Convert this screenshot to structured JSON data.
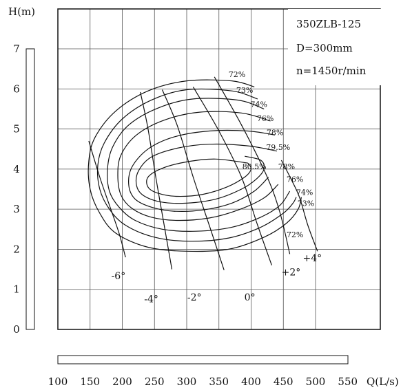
{
  "chart_data": {
    "type": "line",
    "title": "",
    "xlabel": "Q(L/s)",
    "ylabel": "H(m)",
    "xlim": [
      100,
      550
    ],
    "ylim": [
      0,
      7
    ],
    "x_ticks": [
      "100",
      "150",
      "200",
      "250",
      "300",
      "350",
      "400",
      "450",
      "500",
      "550"
    ],
    "y_ticks": [
      "0",
      "1",
      "2",
      "3",
      "4",
      "5",
      "6",
      "7"
    ],
    "grid": true,
    "info": [
      "350ZLB-125",
      "D=300mm",
      "n=1450r/min"
    ],
    "efficiency_contours": [
      {
        "name": "72%",
        "points": [
          [
            405,
            6.05
          ],
          [
            370,
            6.2
          ],
          [
            300,
            6.2
          ],
          [
            240,
            5.95
          ],
          [
            190,
            5.45
          ],
          [
            158,
            4.8
          ],
          [
            148,
            4.2
          ],
          [
            150,
            3.5
          ],
          [
            165,
            2.9
          ],
          [
            190,
            2.4
          ],
          [
            240,
            2.05
          ],
          [
            300,
            1.95
          ],
          [
            365,
            2.0
          ],
          [
            420,
            2.3
          ],
          [
            455,
            2.65
          ],
          [
            473,
            3.0
          ],
          [
            478,
            3.3
          ]
        ]
      },
      {
        "name": "73%",
        "points": [
          [
            410,
            5.75
          ],
          [
            370,
            5.95
          ],
          [
            300,
            5.98
          ],
          [
            245,
            5.72
          ],
          [
            200,
            5.25
          ],
          [
            172,
            4.65
          ],
          [
            162,
            4.1
          ],
          [
            165,
            3.5
          ],
          [
            180,
            3.0
          ],
          [
            205,
            2.6
          ],
          [
            250,
            2.3
          ],
          [
            305,
            2.2
          ],
          [
            365,
            2.28
          ],
          [
            415,
            2.55
          ],
          [
            450,
            2.9
          ],
          [
            465,
            3.15
          ],
          [
            470,
            3.3
          ]
        ]
      },
      {
        "name": "74%",
        "points": [
          [
            420,
            5.5
          ],
          [
            380,
            5.72
          ],
          [
            310,
            5.75
          ],
          [
            255,
            5.52
          ],
          [
            210,
            5.1
          ],
          [
            185,
            4.55
          ],
          [
            177,
            4.0
          ],
          [
            180,
            3.45
          ],
          [
            195,
            3.05
          ],
          [
            220,
            2.72
          ],
          [
            262,
            2.5
          ],
          [
            315,
            2.45
          ],
          [
            370,
            2.55
          ],
          [
            415,
            2.8
          ],
          [
            445,
            3.1
          ],
          [
            460,
            3.45
          ]
        ]
      },
      {
        "name": "76%",
        "points": [
          [
            430,
            5.2
          ],
          [
            385,
            5.4
          ],
          [
            320,
            5.42
          ],
          [
            265,
            5.22
          ],
          [
            222,
            4.85
          ],
          [
            198,
            4.35
          ],
          [
            193,
            3.85
          ],
          [
            198,
            3.35
          ],
          [
            215,
            3.02
          ],
          [
            245,
            2.8
          ],
          [
            285,
            2.72
          ],
          [
            335,
            2.78
          ],
          [
            380,
            2.98
          ],
          [
            420,
            3.28
          ],
          [
            442,
            3.62
          ]
        ]
      },
      {
        "name": "78%",
        "points": [
          [
            437,
            4.85
          ],
          [
            395,
            4.95
          ],
          [
            335,
            4.95
          ],
          [
            280,
            4.8
          ],
          [
            240,
            4.5
          ],
          [
            215,
            4.05
          ],
          [
            210,
            3.6
          ],
          [
            220,
            3.25
          ],
          [
            245,
            3.05
          ],
          [
            280,
            2.95
          ],
          [
            325,
            2.98
          ],
          [
            370,
            3.15
          ],
          [
            405,
            3.45
          ],
          [
            427,
            3.8
          ]
        ]
      },
      {
        "name": "79.5%",
        "points": [
          [
            440,
            4.45
          ],
          [
            395,
            4.58
          ],
          [
            335,
            4.62
          ],
          [
            285,
            4.52
          ],
          [
            245,
            4.3
          ],
          [
            225,
            3.95
          ],
          [
            222,
            3.6
          ],
          [
            232,
            3.35
          ],
          [
            260,
            3.18
          ],
          [
            300,
            3.15
          ],
          [
            345,
            3.25
          ],
          [
            385,
            3.5
          ],
          [
            408,
            3.75
          ],
          [
            420,
            4.0
          ],
          [
            415,
            4.22
          ],
          [
            390,
            4.32
          ]
        ]
      },
      {
        "name": "80.5%",
        "points": [
          [
            395,
            4.15
          ],
          [
            345,
            4.25
          ],
          [
            300,
            4.18
          ],
          [
            262,
            4.02
          ],
          [
            240,
            3.8
          ],
          [
            240,
            3.55
          ],
          [
            255,
            3.4
          ],
          [
            285,
            3.32
          ],
          [
            325,
            3.37
          ],
          [
            362,
            3.55
          ],
          [
            390,
            3.8
          ],
          [
            400,
            4.0
          ],
          [
            395,
            4.15
          ]
        ]
      }
    ],
    "angle_curves": [
      {
        "name": "-6°",
        "points": [
          [
            148,
            4.7
          ],
          [
            165,
            3.8
          ],
          [
            180,
            3.1
          ],
          [
            195,
            2.4
          ],
          [
            205,
            1.8
          ]
        ]
      },
      {
        "name": "-4°",
        "points": [
          [
            228,
            5.92
          ],
          [
            240,
            5.0
          ],
          [
            252,
            3.8
          ],
          [
            265,
            2.6
          ],
          [
            277,
            1.5
          ]
        ]
      },
      {
        "name": "-2°",
        "points": [
          [
            262,
            5.98
          ],
          [
            285,
            5.1
          ],
          [
            310,
            3.8
          ],
          [
            335,
            2.6
          ],
          [
            358,
            1.48
          ]
        ]
      },
      {
        "name": "0°",
        "points": [
          [
            310,
            6.05
          ],
          [
            350,
            4.95
          ],
          [
            385,
            3.8
          ],
          [
            410,
            2.6
          ],
          [
            432,
            1.6
          ]
        ]
      },
      {
        "name": "+2°",
        "points": [
          [
            343,
            6.3
          ],
          [
            385,
            5.1
          ],
          [
            425,
            3.8
          ],
          [
            445,
            2.9
          ],
          [
            460,
            1.88
          ]
        ]
      },
      {
        "name": "+4°",
        "points": [
          [
            447,
            4.22
          ],
          [
            462,
            3.75
          ],
          [
            475,
            3.3
          ],
          [
            488,
            2.6
          ],
          [
            503,
            1.95
          ]
        ]
      }
    ],
    "contour_labels": [
      {
        "text": "72%",
        "x": 378,
        "y": 6.3
      },
      {
        "text": "73%",
        "x": 390,
        "y": 5.9
      },
      {
        "text": "74%",
        "x": 412,
        "y": 5.55
      },
      {
        "text": "76%",
        "x": 422,
        "y": 5.2
      },
      {
        "text": "78%",
        "x": 437,
        "y": 4.85
      },
      {
        "text": "79.5%",
        "x": 442,
        "y": 4.48
      },
      {
        "text": "80.5%",
        "x": 405,
        "y": 4.0
      },
      {
        "text": "78%",
        "x": 455,
        "y": 4.0
      },
      {
        "text": "76%",
        "x": 468,
        "y": 3.68
      },
      {
        "text": "74%",
        "x": 483,
        "y": 3.35
      },
      {
        "text": "73%",
        "x": 485,
        "y": 3.08
      },
      {
        "text": "72%",
        "x": 468,
        "y": 2.3
      }
    ],
    "angle_labels": [
      {
        "text": "-6°",
        "x": 194,
        "y": 1.25
      },
      {
        "text": "-4°",
        "x": 245,
        "y": 0.68
      },
      {
        "text": "-2°",
        "x": 312,
        "y": 0.72
      },
      {
        "text": "0°",
        "x": 398,
        "y": 0.72
      },
      {
        "text": "+2°",
        "x": 462,
        "y": 1.35
      },
      {
        "text": "+4°",
        "x": 495,
        "y": 1.7
      }
    ]
  }
}
